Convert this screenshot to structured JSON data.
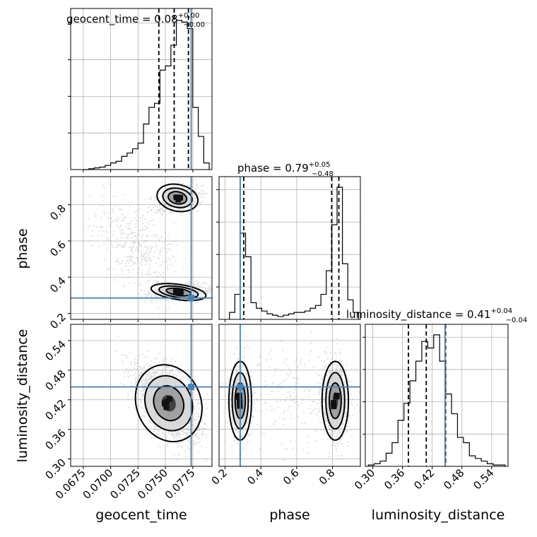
{
  "chart_data": {
    "type": "corner",
    "parameters": [
      "geocent_time",
      "phase",
      "luminosity_distance"
    ],
    "axis_labels": {
      "geocent_time": "geocent_time",
      "phase": "phase",
      "luminosity_distance": "luminosity_distance"
    },
    "titles": [
      {
        "param": "geocent_time",
        "prefix": "geocent_time = 0.08",
        "plus": "+0.00",
        "minus": "−0.00"
      },
      {
        "param": "phase",
        "prefix": "phase = 0.79",
        "plus": "+0.05",
        "minus": "−0.48"
      },
      {
        "param": "luminosity_distance",
        "prefix": "luminosity_distance = 0.41",
        "plus": "+0.04",
        "minus": "−0.04"
      }
    ],
    "ranges": {
      "geocent_time": [
        0.06635,
        0.07925
      ],
      "phase": [
        0.167,
        0.955
      ],
      "luminosity_distance": [
        0.285,
        0.573
      ]
    },
    "ticks": {
      "geocent_time": {
        "values": [
          0.0675,
          0.07,
          0.0725,
          0.075,
          0.0775
        ],
        "labels": [
          "0.0675",
          "0.0700",
          "0.0725",
          "0.0750",
          "0.0775"
        ]
      },
      "phase": {
        "values": [
          0.2,
          0.4,
          0.6,
          0.8
        ],
        "labels": [
          "0.2",
          "0.4",
          "0.6",
          "0.8"
        ]
      },
      "luminosity_distance": {
        "values": [
          0.3,
          0.36,
          0.42,
          0.48,
          0.54
        ],
        "labels": [
          "0.30",
          "0.36",
          "0.42",
          "0.48",
          "0.54"
        ]
      }
    },
    "truths": {
      "geocent_time": 0.07735,
      "phase": 0.285,
      "luminosity_distance": 0.446
    },
    "truth_color": "#4682b4",
    "quantiles": {
      "geocent_time": [
        0.0744,
        0.0758,
        0.0771
      ],
      "phase": [
        0.305,
        0.795,
        0.835
      ],
      "luminosity_distance": [
        0.372,
        0.408,
        0.447
      ]
    },
    "histograms": {
      "geocent_time": {
        "edges": [
          0.0675,
          0.068,
          0.0685,
          0.069,
          0.0695,
          0.07,
          0.0705,
          0.071,
          0.0715,
          0.072,
          0.0725,
          0.073,
          0.0735,
          0.074,
          0.0745,
          0.075,
          0.0755,
          0.076,
          0.0765,
          0.077,
          0.0775,
          0.078,
          0.0785,
          0.079
        ],
        "counts": [
          0,
          1,
          2,
          3,
          5,
          8,
          10,
          16,
          20,
          25,
          32,
          55,
          75,
          80,
          120,
          125,
          150,
          180,
          178,
          170,
          75,
          40,
          8
        ]
      },
      "phase": {
        "edges": [
          0.225,
          0.255,
          0.285,
          0.315,
          0.345,
          0.375,
          0.405,
          0.435,
          0.465,
          0.495,
          0.525,
          0.555,
          0.585,
          0.615,
          0.645,
          0.675,
          0.705,
          0.735,
          0.765,
          0.795,
          0.825,
          0.855,
          0.885,
          0.915,
          0.945
        ],
        "counts": [
          5,
          18,
          62,
          45,
          12,
          8,
          6,
          4,
          3,
          2,
          3,
          4,
          5,
          5,
          6,
          8,
          10,
          18,
          35,
          68,
          95,
          40,
          14,
          5
        ]
      },
      "luminosity_distance": {
        "edges": [
          0.291,
          0.303,
          0.315,
          0.327,
          0.339,
          0.351,
          0.363,
          0.375,
          0.387,
          0.399,
          0.411,
          0.423,
          0.435,
          0.447,
          0.459,
          0.471,
          0.483,
          0.495,
          0.507,
          0.519,
          0.531,
          0.543,
          0.555,
          0.567
        ],
        "counts": [
          1,
          2,
          4,
          10,
          18,
          35,
          48,
          65,
          80,
          95,
          90,
          100,
          80,
          55,
          40,
          22,
          18,
          8,
          6,
          4,
          2,
          1,
          1
        ]
      }
    },
    "grid": true
  }
}
